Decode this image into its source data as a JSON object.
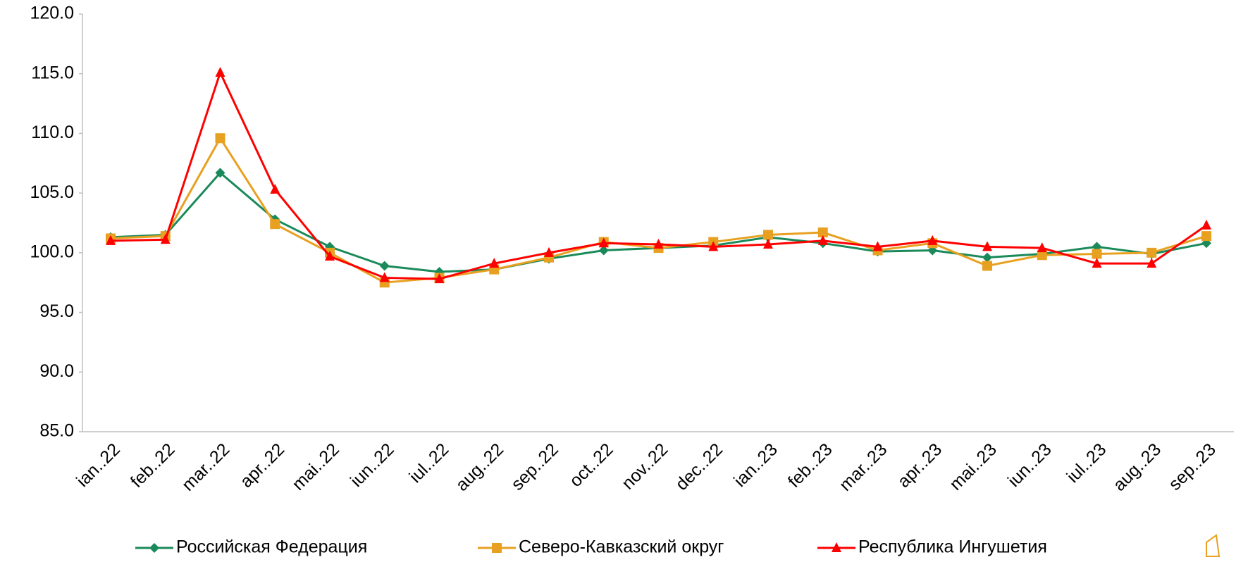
{
  "chart_data": {
    "type": "line",
    "categories": [
      "ian..22",
      "feb..22",
      "mar..22",
      "apr..22",
      "mai..22",
      "iun..22",
      "iul..22",
      "aug..22",
      "sep..22",
      "oct..22",
      "nov..22",
      "dec..22",
      "ian..23",
      "feb..23",
      "mar..23",
      "apr..23",
      "mai..23",
      "iun..23",
      "iul..23",
      "aug..23",
      "sep..23"
    ],
    "series": [
      {
        "name": "Российская Федерация",
        "color": "#1a8a5a",
        "marker": "diamond",
        "values": [
          101.3,
          101.5,
          106.7,
          102.8,
          100.5,
          98.9,
          98.4,
          98.6,
          99.5,
          100.2,
          100.4,
          100.6,
          101.3,
          100.8,
          100.1,
          100.2,
          99.6,
          99.9,
          100.5,
          99.9,
          100.8
        ]
      },
      {
        "name": "Северо-Кавказский  округ",
        "color": "#e8a020",
        "marker": "square",
        "values": [
          101.2,
          101.4,
          109.6,
          102.4,
          100.0,
          97.5,
          97.9,
          98.6,
          99.6,
          100.9,
          100.4,
          100.9,
          101.5,
          101.7,
          100.2,
          100.8,
          98.9,
          99.8,
          99.9,
          100.0,
          101.4
        ]
      },
      {
        "name": "Республика Ингушетия",
        "color": "#ff0000",
        "marker": "triangle",
        "values": [
          101.0,
          101.1,
          115.1,
          105.3,
          99.7,
          97.9,
          97.8,
          99.1,
          100.0,
          100.8,
          100.7,
          100.5,
          100.7,
          101.0,
          100.5,
          101.0,
          100.5,
          100.4,
          99.1,
          99.1,
          102.3
        ]
      }
    ],
    "ylim": [
      85,
      120
    ],
    "yticks": [
      {
        "value": 85,
        "label": "85.0"
      },
      {
        "value": 90,
        "label": "90.0"
      },
      {
        "value": 95,
        "label": "95.0"
      },
      {
        "value": 100,
        "label": "100.0"
      },
      {
        "value": 105,
        "label": "105.0"
      },
      {
        "value": 110,
        "label": "110.0"
      },
      {
        "value": 115,
        "label": "115.0"
      },
      {
        "value": 120,
        "label": "120.0"
      }
    ],
    "legend": "bottom"
  }
}
